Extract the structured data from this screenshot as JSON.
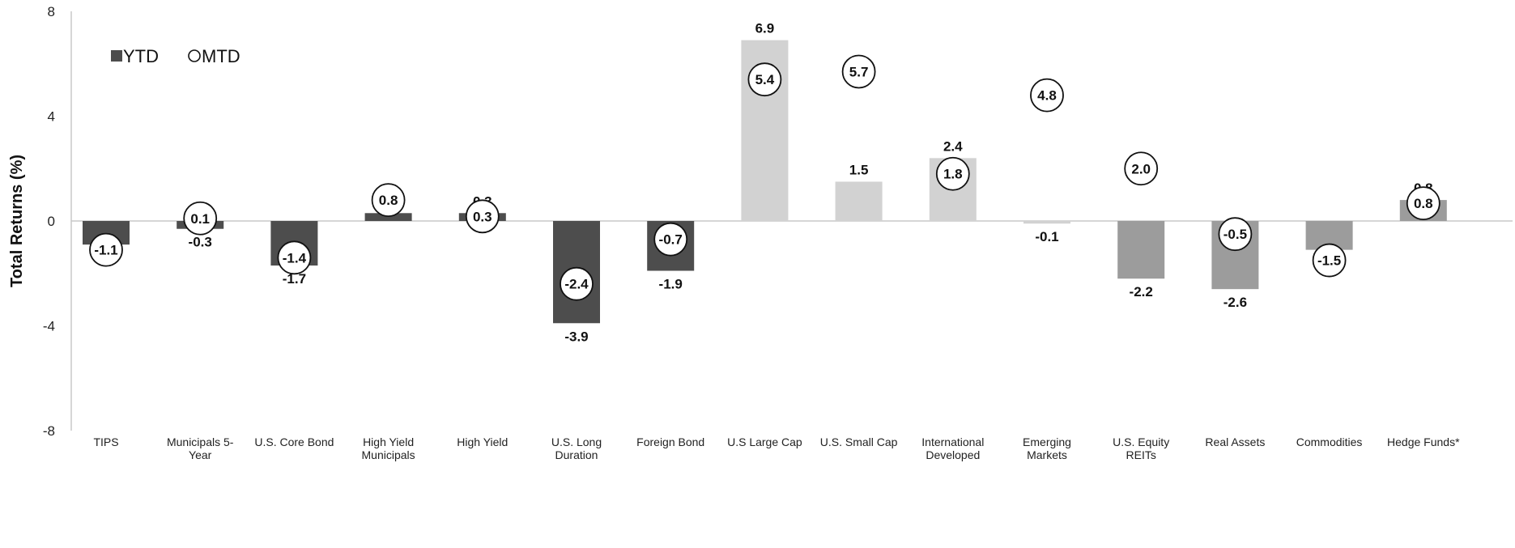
{
  "chart_data": {
    "type": "bar",
    "ylabel": "Total Returns (%)",
    "ylim": [
      -8,
      8
    ],
    "yticks": [
      8,
      4,
      0,
      -4,
      -8
    ],
    "legend": {
      "placement": "top-left"
    },
    "categories": [
      [
        "TIPS"
      ],
      [
        "Municipals 5-",
        "Year"
      ],
      [
        "U.S. Core Bond"
      ],
      [
        "High Yield",
        "Municipals"
      ],
      [
        "High Yield"
      ],
      [
        "U.S. Long",
        "Duration"
      ],
      [
        "Foreign Bond"
      ],
      [
        "U.S Large Cap"
      ],
      [
        "U.S. Small Cap"
      ],
      [
        "International",
        "Developed"
      ],
      [
        "Emerging",
        "Markets"
      ],
      [
        "U.S. Equity",
        "REITs"
      ],
      [
        "Real Assets"
      ],
      [
        "Commodities"
      ],
      [
        "Hedge Funds*"
      ]
    ],
    "series": [
      {
        "name": "YTD",
        "marker": "bar",
        "values": [
          -0.9,
          -0.3,
          -1.7,
          0.3,
          0.3,
          -3.9,
          -1.9,
          6.9,
          1.5,
          2.4,
          -0.1,
          -2.2,
          -2.6,
          -1.1,
          0.8
        ],
        "labels": [
          "-0.9",
          "-0.3",
          "-1.7",
          "0.3",
          "0.3",
          "-3.9",
          "-1.9",
          "6.9",
          "1.5",
          "2.4",
          "-0.1",
          "-2.2",
          "-2.6",
          "-1.1",
          "0.8"
        ]
      },
      {
        "name": "MTD",
        "marker": "circle",
        "values": [
          -1.1,
          0.1,
          -1.4,
          0.8,
          0.3,
          -2.4,
          -0.7,
          5.4,
          5.7,
          1.8,
          4.8,
          2.0,
          -0.5,
          -1.5,
          0.8
        ],
        "labels": [
          "-1.1",
          "0.1",
          "-1.4",
          "0.8",
          "0.3",
          "-2.4",
          "-0.7",
          "5.4",
          "5.7",
          "1.8",
          "4.8",
          "2.0",
          "-0.5",
          "-1.5",
          "0.8"
        ]
      }
    ],
    "bar_colors": [
      "#4d4d4d",
      "#4d4d4d",
      "#4d4d4d",
      "#4d4d4d",
      "#4d4d4d",
      "#4d4d4d",
      "#4d4d4d",
      "#d2d2d2",
      "#d2d2d2",
      "#d2d2d2",
      "#d2d2d2",
      "#9c9c9c",
      "#9c9c9c",
      "#9c9c9c",
      "#9c9c9c"
    ],
    "legend_swatch_color": "#4d4d4d",
    "axis_color": "#c8c8c8"
  }
}
